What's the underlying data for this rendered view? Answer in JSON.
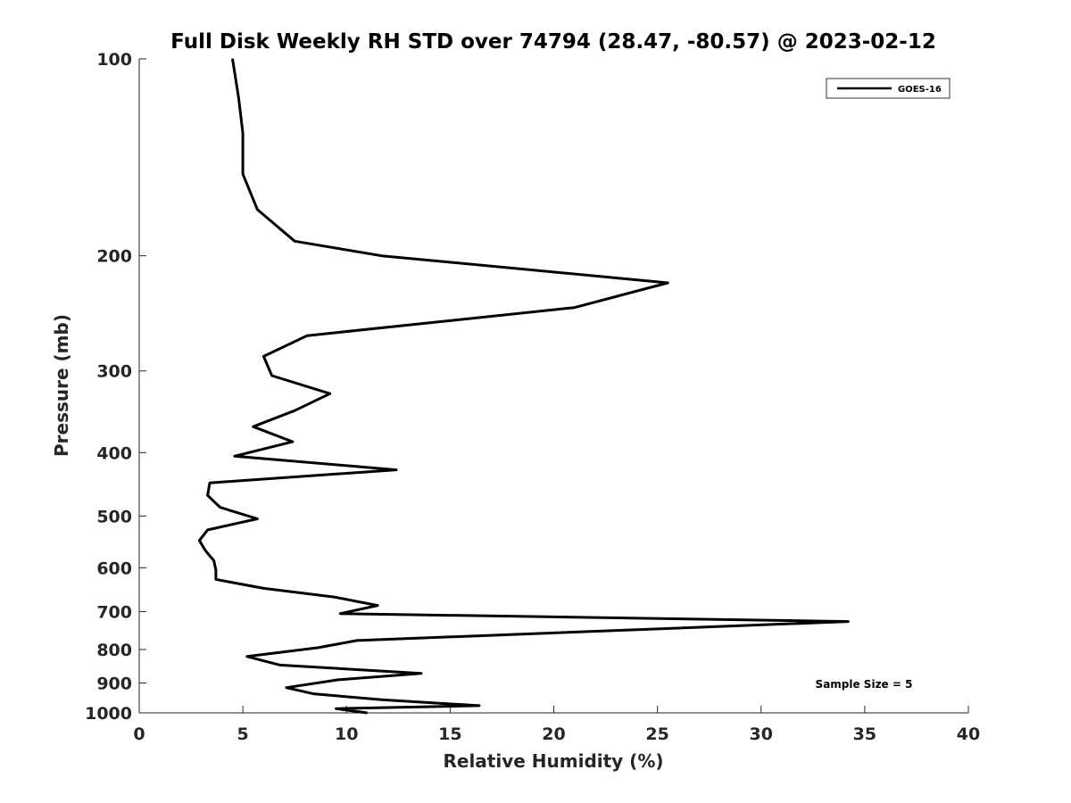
{
  "chart_data": {
    "type": "line",
    "title": "Full Disk Weekly RH STD over 74794 (28.47, -80.57) @ 2023-02-12",
    "xlabel": "Relative Humidity (%)",
    "ylabel": "Pressure (mb)",
    "xlim": [
      0,
      40
    ],
    "ylim": [
      100,
      1000
    ],
    "yscale": "log",
    "y_reversed": true,
    "x_ticks": [
      0,
      5,
      10,
      15,
      20,
      25,
      30,
      35,
      40
    ],
    "y_ticks": [
      100,
      200,
      300,
      400,
      500,
      600,
      700,
      800,
      900,
      1000
    ],
    "grid": false,
    "legend_position": "top-right",
    "annotation": "Sample Size = 5",
    "series": [
      {
        "name": "GOES-16",
        "color": "#000000",
        "points": [
          [
            4.5,
            100
          ],
          [
            4.8,
            115
          ],
          [
            5.0,
            130
          ],
          [
            5.0,
            150
          ],
          [
            5.7,
            170
          ],
          [
            7.5,
            190
          ],
          [
            11.7,
            200
          ],
          [
            25.5,
            220
          ],
          [
            21.0,
            240
          ],
          [
            8.1,
            265
          ],
          [
            6.0,
            285
          ],
          [
            6.4,
            305
          ],
          [
            9.2,
            325
          ],
          [
            7.5,
            345
          ],
          [
            5.5,
            365
          ],
          [
            7.4,
            385
          ],
          [
            4.6,
            405
          ],
          [
            12.4,
            425
          ],
          [
            3.4,
            445
          ],
          [
            3.3,
            465
          ],
          [
            3.9,
            485
          ],
          [
            5.7,
            505
          ],
          [
            3.3,
            525
          ],
          [
            2.9,
            545
          ],
          [
            3.2,
            565
          ],
          [
            3.6,
            585
          ],
          [
            3.7,
            605
          ],
          [
            3.7,
            625
          ],
          [
            6.0,
            645
          ],
          [
            9.4,
            665
          ],
          [
            11.5,
            685
          ],
          [
            9.7,
            705
          ],
          [
            34.2,
            725
          ],
          [
            10.5,
            775
          ],
          [
            8.6,
            795
          ],
          [
            5.2,
            820
          ],
          [
            6.8,
            845
          ],
          [
            13.6,
            870
          ],
          [
            9.6,
            890
          ],
          [
            7.1,
            915
          ],
          [
            8.4,
            935
          ],
          [
            11.7,
            955
          ],
          [
            16.4,
            975
          ],
          [
            9.5,
            985
          ],
          [
            11.0,
            1000
          ]
        ]
      }
    ]
  }
}
